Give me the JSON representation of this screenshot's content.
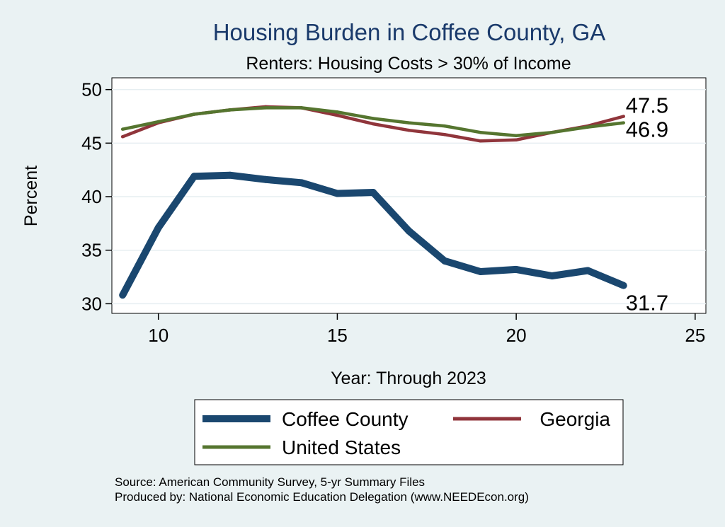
{
  "chart_data": {
    "type": "line",
    "title": "Housing Burden in Coffee County, GA",
    "subtitle": "Renters: Housing Costs > 30% of Income",
    "xlabel": "Year: Through 2023",
    "ylabel": "Percent",
    "xlim": [
      8.7,
      25.3
    ],
    "ylim": [
      29.1,
      51.1
    ],
    "xticks": [
      10,
      15,
      20,
      25
    ],
    "yticks": [
      30,
      35,
      40,
      45,
      50
    ],
    "grid": true,
    "series": [
      {
        "name": "Coffee County",
        "color": "#1a476f",
        "x": [
          9,
          10,
          11,
          12,
          13,
          14,
          15,
          16,
          17,
          18,
          19,
          20,
          21,
          22,
          23
        ],
        "values": [
          30.8,
          37.1,
          41.9,
          42.0,
          41.6,
          41.3,
          40.3,
          40.4,
          36.8,
          34.0,
          33.0,
          33.2,
          32.6,
          33.1,
          31.7
        ],
        "end_label": "31.7"
      },
      {
        "name": "Georgia",
        "color": "#90353b",
        "x": [
          9,
          10,
          11,
          12,
          13,
          14,
          15,
          16,
          17,
          18,
          19,
          20,
          21,
          22,
          23
        ],
        "values": [
          45.6,
          46.9,
          47.7,
          48.1,
          48.4,
          48.3,
          47.6,
          46.8,
          46.2,
          45.8,
          45.2,
          45.3,
          46.0,
          46.6,
          47.5
        ],
        "end_label": "47.5"
      },
      {
        "name": "United States",
        "color": "#55752f",
        "x": [
          9,
          10,
          11,
          12,
          13,
          14,
          15,
          16,
          17,
          18,
          19,
          20,
          21,
          22,
          23
        ],
        "values": [
          46.3,
          47.0,
          47.7,
          48.1,
          48.3,
          48.3,
          47.9,
          47.3,
          46.9,
          46.6,
          46.0,
          45.7,
          46.0,
          46.5,
          46.9
        ],
        "end_label": "46.9"
      }
    ],
    "legend_position": "bottom"
  },
  "source": {
    "line1": "Source: American Community Survey, 5-yr Summary Files",
    "line2": "Produced by: National Economic Education Delegation (www.NEEDEcon.org)"
  }
}
